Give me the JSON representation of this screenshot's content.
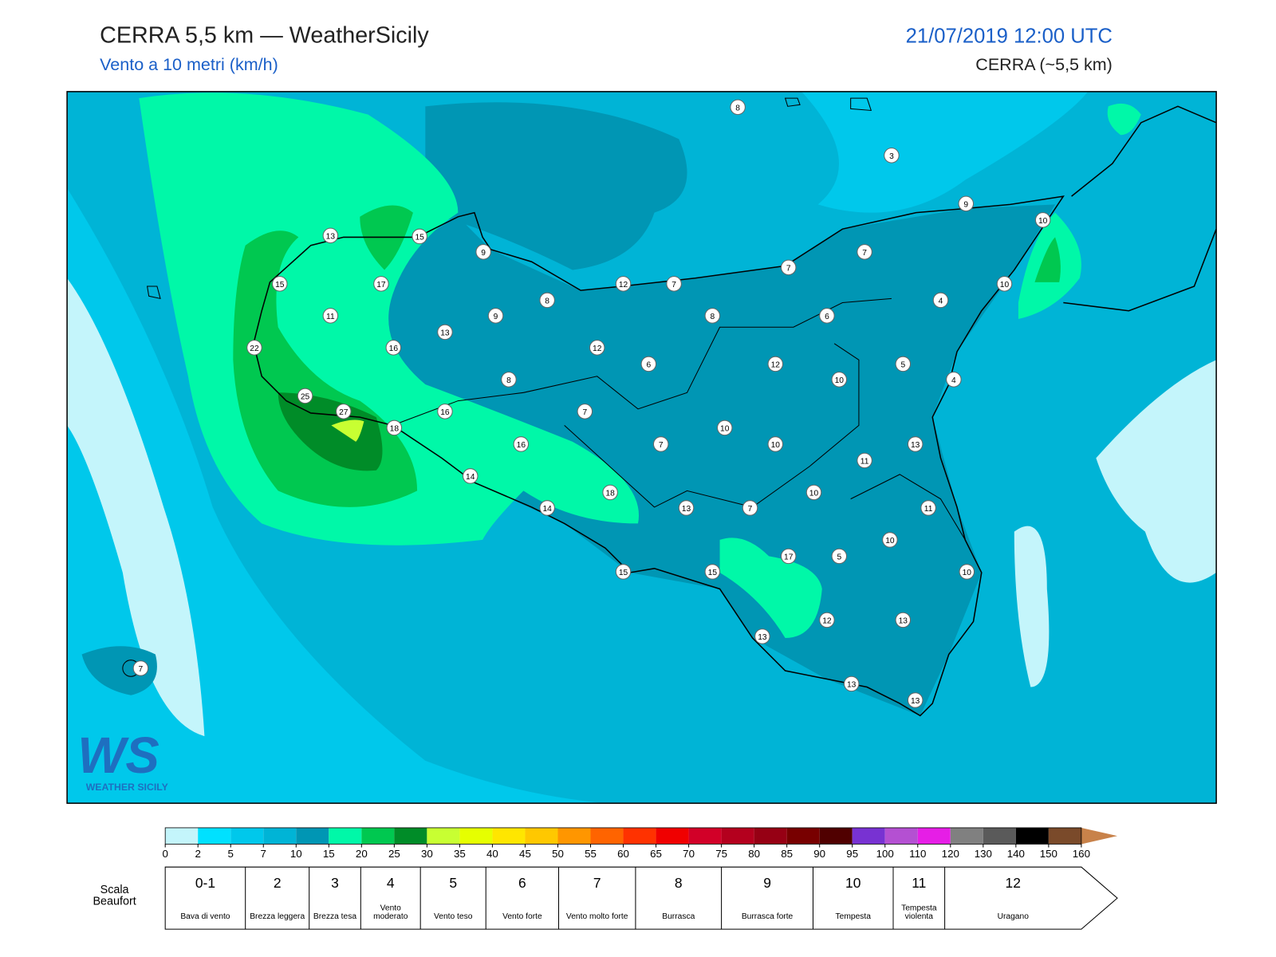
{
  "header": {
    "title": "CERRA 5,5 km — WeatherSicily",
    "subtitle": "Vento a 10 metri (km/h)",
    "datetime": "21/07/2019 12:00 UTC",
    "model": "CERRA (~5,5 km)"
  },
  "map": {
    "stations": [
      8,
      3,
      9,
      10,
      13,
      15,
      9,
      7,
      7,
      15,
      17,
      12,
      7,
      10,
      8,
      4,
      11,
      9,
      8,
      6,
      13,
      22,
      16,
      12,
      6,
      12,
      5,
      8,
      10,
      4,
      25,
      16,
      7,
      27,
      18,
      10,
      16,
      7,
      10,
      13,
      11,
      14,
      10,
      18,
      14,
      13,
      7,
      11,
      10,
      17,
      5,
      15,
      15,
      10,
      12,
      13,
      13,
      7,
      13,
      13
    ]
  },
  "logo": {
    "mark": "WS",
    "name": "WEATHER SICILY"
  },
  "colorbar": {
    "ticks": [
      0,
      2,
      5,
      7,
      10,
      15,
      20,
      25,
      30,
      35,
      40,
      45,
      50,
      55,
      60,
      65,
      70,
      75,
      80,
      85,
      90,
      95,
      100,
      110,
      120,
      130,
      140,
      150,
      160
    ],
    "colors": [
      "#c4f5fb",
      "#00e1ff",
      "#00c8eb",
      "#00b4d6",
      "#0096b4",
      "#00f8a8",
      "#00c850",
      "#008c28",
      "#c8ff32",
      "#e6ff00",
      "#ffe600",
      "#ffc800",
      "#ff9600",
      "#ff6400",
      "#ff3200",
      "#f00000",
      "#d20028",
      "#b4001e",
      "#960014",
      "#780000",
      "#500000",
      "#7832d2",
      "#b450d2",
      "#e61ee6",
      "#808080",
      "#5a5a5a",
      "#000000",
      "#7a4a2a"
    ],
    "extend_color": "#c8824a"
  },
  "beaufort": {
    "title": "Scala Beaufort",
    "levels": [
      {
        "force": "0-1",
        "description": "Bava di vento"
      },
      {
        "force": "2",
        "description": "Brezza leggera"
      },
      {
        "force": "3",
        "description": "Brezza tesa"
      },
      {
        "force": "4",
        "description": "Vento moderato"
      },
      {
        "force": "5",
        "description": "Vento teso"
      },
      {
        "force": "6",
        "description": "Vento forte"
      },
      {
        "force": "7",
        "description": "Vento molto forte"
      },
      {
        "force": "8",
        "description": "Burrasca"
      },
      {
        "force": "9",
        "description": "Burrasca forte"
      },
      {
        "force": "10",
        "description": "Tempesta"
      },
      {
        "force": "11",
        "description": "Tempesta violenta"
      },
      {
        "force": "12",
        "description": "Uragano"
      }
    ]
  }
}
